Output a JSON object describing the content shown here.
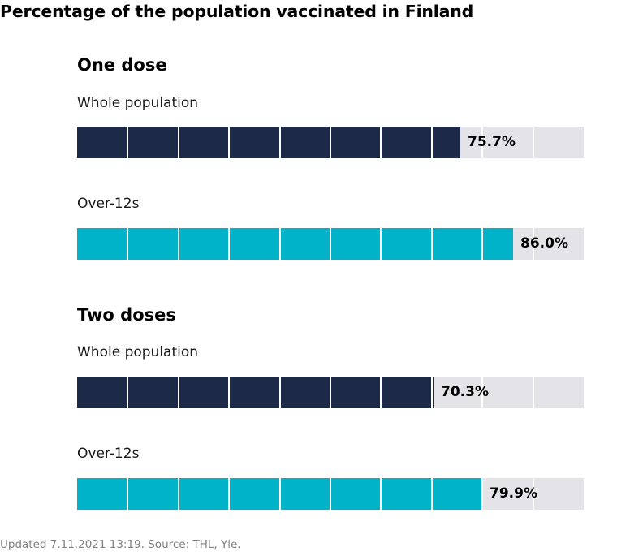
{
  "chart_data": {
    "type": "bar",
    "title": "Percentage of the population vaccinated in Finland",
    "xlim": [
      0,
      100
    ],
    "unit": "%",
    "groups": [
      {
        "heading": "One dose",
        "rows": [
          {
            "label": "Whole population",
            "value": 75.7,
            "value_label": "75.7%",
            "color": "#1c2a48"
          },
          {
            "label": "Over-12s",
            "value": 86.0,
            "value_label": "86.0%",
            "color": "#00b3c8"
          }
        ]
      },
      {
        "heading": "Two doses",
        "rows": [
          {
            "label": "Whole population",
            "value": 70.3,
            "value_label": "70.3%",
            "color": "#1c2a48"
          },
          {
            "label": "Over-12s",
            "value": 79.9,
            "value_label": "79.9%",
            "color": "#00b3c8"
          }
        ]
      }
    ],
    "segments": 10,
    "footer": "Updated 7.11.2021 13:19. Source: THL, Yle."
  }
}
